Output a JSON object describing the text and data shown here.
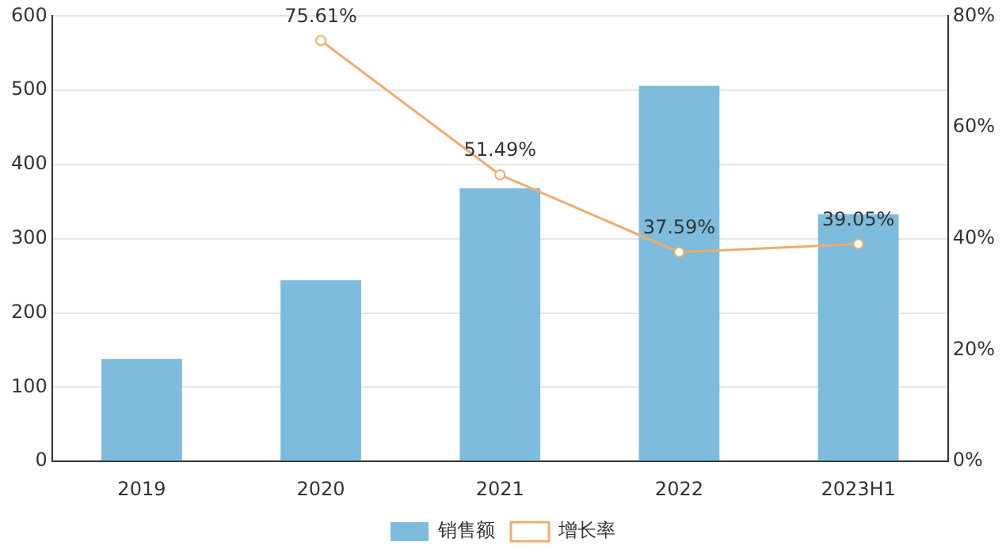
{
  "chart_data": {
    "type": "bar",
    "categories": [
      "2019",
      "2020",
      "2021",
      "2022",
      "2023H1"
    ],
    "series": [
      {
        "name": "销售额",
        "color": "#7dbcdc",
        "values": [
          138,
          244,
          368,
          506,
          333
        ]
      },
      {
        "name": "增长率",
        "type": "line",
        "axis": "y2",
        "color": "#f0ac6c",
        "values": [
          null,
          75.61,
          51.49,
          37.59,
          39.05
        ],
        "value_labels": [
          null,
          "75.61%",
          "51.49%",
          "37.59%",
          "39.05%"
        ],
        "marker": "circle"
      }
    ],
    "ylim": [
      0,
      600
    ],
    "yticks": [
      0,
      100,
      200,
      300,
      400,
      500,
      600
    ],
    "y2lim": [
      0,
      80
    ],
    "y2ticks": [
      {
        "value": 0,
        "label": "0%"
      },
      {
        "value": 20,
        "label": "20%"
      },
      {
        "value": 40,
        "label": "40%"
      },
      {
        "value": 60,
        "label": "60%"
      },
      {
        "value": 80,
        "label": "80%"
      }
    ],
    "grid": "y",
    "legend": "bottom"
  }
}
